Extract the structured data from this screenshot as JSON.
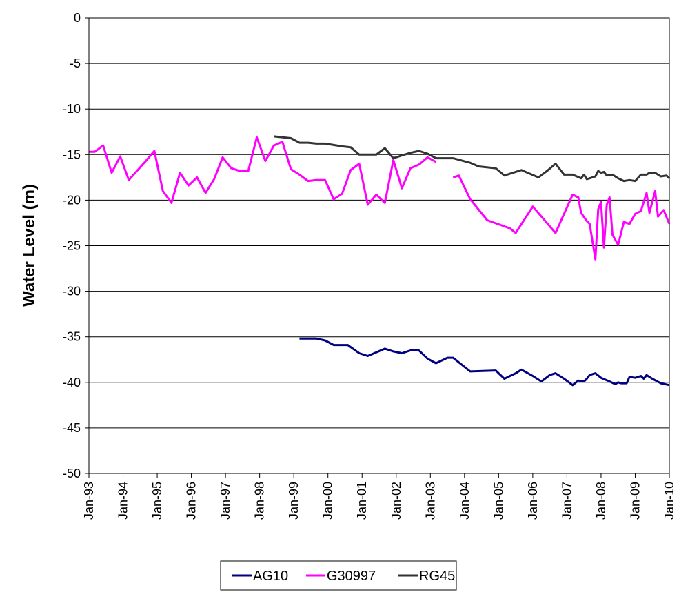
{
  "chart_data": {
    "type": "line",
    "title": "",
    "xlabel": "",
    "ylabel": "Water Level (m)",
    "ylim": [
      -50,
      0
    ],
    "yticks": [
      0,
      -5,
      -10,
      -15,
      -20,
      -25,
      -30,
      -35,
      -40,
      -45,
      -50
    ],
    "xlim": [
      "1993-01",
      "2010-01"
    ],
    "xticks": [
      "Jan-93",
      "Jan-94",
      "Jan-95",
      "Jan-96",
      "Jan-97",
      "Jan-98",
      "Jan-99",
      "Jan-00",
      "Jan-01",
      "Jan-02",
      "Jan-03",
      "Jan-04",
      "Jan-05",
      "Jan-06",
      "Jan-07",
      "Jan-08",
      "Jan-09",
      "Jan-10"
    ],
    "grid": "horizontal",
    "legend_position": "bottom",
    "series": [
      {
        "name": "AG10",
        "color": "#000080",
        "points": [
          [
            "1999-03",
            -35.2
          ],
          [
            "1999-09",
            -35.2
          ],
          [
            "1999-12",
            -35.4
          ],
          [
            "2000-03",
            -35.9
          ],
          [
            "2000-08",
            -35.9
          ],
          [
            "2000-12",
            -36.8
          ],
          [
            "2001-03",
            -37.1
          ],
          [
            "2001-06",
            -36.7
          ],
          [
            "2001-09",
            -36.3
          ],
          [
            "2001-12",
            -36.6
          ],
          [
            "2002-03",
            -36.8
          ],
          [
            "2002-06",
            -36.5
          ],
          [
            "2002-09",
            -36.5
          ],
          [
            "2002-12",
            -37.4
          ],
          [
            "2003-03",
            -37.9
          ],
          [
            "2003-07",
            -37.3
          ],
          [
            "2003-09",
            -37.3
          ],
          [
            "2004-03",
            -38.8
          ],
          [
            "2004-12",
            -38.7
          ],
          [
            "2005-03",
            -39.6
          ],
          [
            "2005-07",
            -39.0
          ],
          [
            "2005-09",
            -38.6
          ],
          [
            "2006-01",
            -39.3
          ],
          [
            "2006-04",
            -39.9
          ],
          [
            "2006-07",
            -39.2
          ],
          [
            "2006-09",
            -39.0
          ],
          [
            "2006-12",
            -39.6
          ],
          [
            "2007-03",
            -40.3
          ],
          [
            "2007-05",
            -39.8
          ],
          [
            "2007-07",
            -39.9
          ],
          [
            "2007-08",
            -39.6
          ],
          [
            "2007-09",
            -39.2
          ],
          [
            "2007-11",
            -39.0
          ],
          [
            "2008-01",
            -39.5
          ],
          [
            "2008-04",
            -39.9
          ],
          [
            "2008-06",
            -40.2
          ],
          [
            "2008-07",
            -40.0
          ],
          [
            "2008-08",
            -40.1
          ],
          [
            "2008-10",
            -40.1
          ],
          [
            "2008-11",
            -39.4
          ],
          [
            "2009-01",
            -39.5
          ],
          [
            "2009-03",
            -39.3
          ],
          [
            "2009-04",
            -39.6
          ],
          [
            "2009-05",
            -39.2
          ],
          [
            "2009-07",
            -39.6
          ],
          [
            "2009-10",
            -40.1
          ],
          [
            "2010-01",
            -40.3
          ]
        ]
      },
      {
        "name": "G30997",
        "color": "#FF00FF",
        "points": [
          [
            "1993-01",
            -14.7
          ],
          [
            "1993-03",
            -14.7
          ],
          [
            "1993-06",
            -14.0
          ],
          [
            "1993-09",
            -17.0
          ],
          [
            "1993-12",
            -15.2
          ],
          [
            "1994-03",
            -17.8
          ],
          [
            "1994-09",
            -15.7
          ],
          [
            "1994-12",
            -14.6
          ],
          [
            "1995-03",
            -19.0
          ],
          [
            "1995-06",
            -20.3
          ],
          [
            "1995-09",
            -17.0
          ],
          [
            "1995-12",
            -18.4
          ],
          [
            "1996-03",
            -17.5
          ],
          [
            "1996-06",
            -19.2
          ],
          [
            "1996-09",
            -17.7
          ],
          [
            "1996-12",
            -15.3
          ],
          [
            "1997-03",
            -16.5
          ],
          [
            "1997-06",
            -16.8
          ],
          [
            "1997-09",
            -16.8
          ],
          [
            "1997-12",
            -13.1
          ],
          [
            "1998-03",
            -15.7
          ],
          [
            "1998-06",
            -14.0
          ],
          [
            "1998-09",
            -13.6
          ],
          [
            "1998-12",
            -16.6
          ],
          [
            "1999-03",
            -17.2
          ],
          [
            "1999-06",
            -17.9
          ],
          [
            "1999-09",
            -17.8
          ],
          [
            "1999-12",
            -17.8
          ],
          [
            "2000-03",
            -19.9
          ],
          [
            "2000-06",
            -19.3
          ],
          [
            "2000-09",
            -16.7
          ],
          [
            "2000-12",
            -16.0
          ],
          [
            "2001-03",
            -20.5
          ],
          [
            "2001-06",
            -19.4
          ],
          [
            "2001-09",
            -20.3
          ],
          [
            "2001-12",
            -15.6
          ],
          [
            "2002-03",
            -18.7
          ],
          [
            "2002-06",
            -16.5
          ],
          [
            "2002-09",
            -16.1
          ],
          [
            "2002-12",
            -15.3
          ],
          [
            "2003-03",
            -15.8
          ],
          null,
          [
            "2003-09",
            -17.5
          ],
          [
            "2003-11",
            -17.3
          ],
          [
            "2004-03",
            -19.9
          ],
          [
            "2004-09",
            -22.2
          ],
          [
            "2005-05",
            -23.1
          ],
          [
            "2005-07",
            -23.6
          ],
          [
            "2006-01",
            -20.7
          ],
          [
            "2006-09",
            -23.6
          ],
          [
            "2007-03",
            -19.4
          ],
          [
            "2007-05",
            -19.7
          ],
          [
            "2007-06",
            -21.4
          ],
          [
            "2007-08",
            -22.3
          ],
          [
            "2007-09",
            -22.6
          ],
          [
            "2007-11",
            -26.5
          ],
          [
            "2007-12",
            -21.0
          ],
          [
            "2008-01",
            -20.2
          ],
          [
            "2008-02",
            -25.2
          ],
          [
            "2008-03",
            -20.5
          ],
          [
            "2008-04",
            -19.7
          ],
          [
            "2008-05",
            -23.8
          ],
          [
            "2008-07",
            -24.9
          ],
          [
            "2008-09",
            -22.4
          ],
          [
            "2008-11",
            -22.6
          ],
          [
            "2009-01",
            -21.5
          ],
          [
            "2009-03",
            -21.2
          ],
          [
            "2009-05",
            -19.2
          ],
          [
            "2009-06",
            -21.4
          ],
          [
            "2009-08",
            -19.0
          ],
          [
            "2009-09",
            -21.8
          ],
          [
            "2009-11",
            -21.1
          ],
          [
            "2010-01",
            -22.6
          ]
        ]
      },
      {
        "name": "RG45",
        "color": "#333333",
        "points": [
          [
            "1998-06",
            -13.0
          ],
          [
            "1998-12",
            -13.2
          ],
          [
            "1999-03",
            -13.7
          ],
          [
            "1999-06",
            -13.7
          ],
          [
            "1999-09",
            -13.8
          ],
          [
            "1999-12",
            -13.8
          ],
          [
            "2000-06",
            -14.1
          ],
          [
            "2000-09",
            -14.2
          ],
          [
            "2000-12",
            -15.0
          ],
          [
            "2001-03",
            -15.0
          ],
          [
            "2001-06",
            -15.0
          ],
          [
            "2001-09",
            -14.3
          ],
          [
            "2001-12",
            -15.4
          ],
          [
            "2002-03",
            -15.1
          ],
          [
            "2002-06",
            -14.8
          ],
          [
            "2002-09",
            -14.6
          ],
          [
            "2002-12",
            -14.9
          ],
          [
            "2003-03",
            -15.4
          ],
          [
            "2003-09",
            -15.4
          ],
          [
            "2004-03",
            -15.9
          ],
          [
            "2004-06",
            -16.3
          ],
          [
            "2004-12",
            -16.5
          ],
          [
            "2005-03",
            -17.3
          ],
          [
            "2005-07",
            -16.9
          ],
          [
            "2005-09",
            -16.7
          ],
          [
            "2006-03",
            -17.5
          ],
          [
            "2006-06",
            -16.8
          ],
          [
            "2006-09",
            -16.0
          ],
          [
            "2006-12",
            -17.2
          ],
          [
            "2007-03",
            -17.2
          ],
          [
            "2007-06",
            -17.6
          ],
          [
            "2007-07",
            -17.2
          ],
          [
            "2007-08",
            -17.7
          ],
          [
            "2007-09",
            -17.6
          ],
          [
            "2007-11",
            -17.4
          ],
          [
            "2007-12",
            -16.8
          ],
          [
            "2008-01",
            -17.0
          ],
          [
            "2008-02",
            -16.9
          ],
          [
            "2008-03",
            -17.3
          ],
          [
            "2008-05",
            -17.2
          ],
          [
            "2008-07",
            -17.6
          ],
          [
            "2008-09",
            -17.9
          ],
          [
            "2008-11",
            -17.8
          ],
          [
            "2009-01",
            -17.9
          ],
          [
            "2009-03",
            -17.2
          ],
          [
            "2009-05",
            -17.2
          ],
          [
            "2009-06",
            -17.0
          ],
          [
            "2009-08",
            -17.0
          ],
          [
            "2009-10",
            -17.4
          ],
          [
            "2009-12",
            -17.3
          ],
          [
            "2010-01",
            -17.6
          ]
        ]
      }
    ]
  }
}
